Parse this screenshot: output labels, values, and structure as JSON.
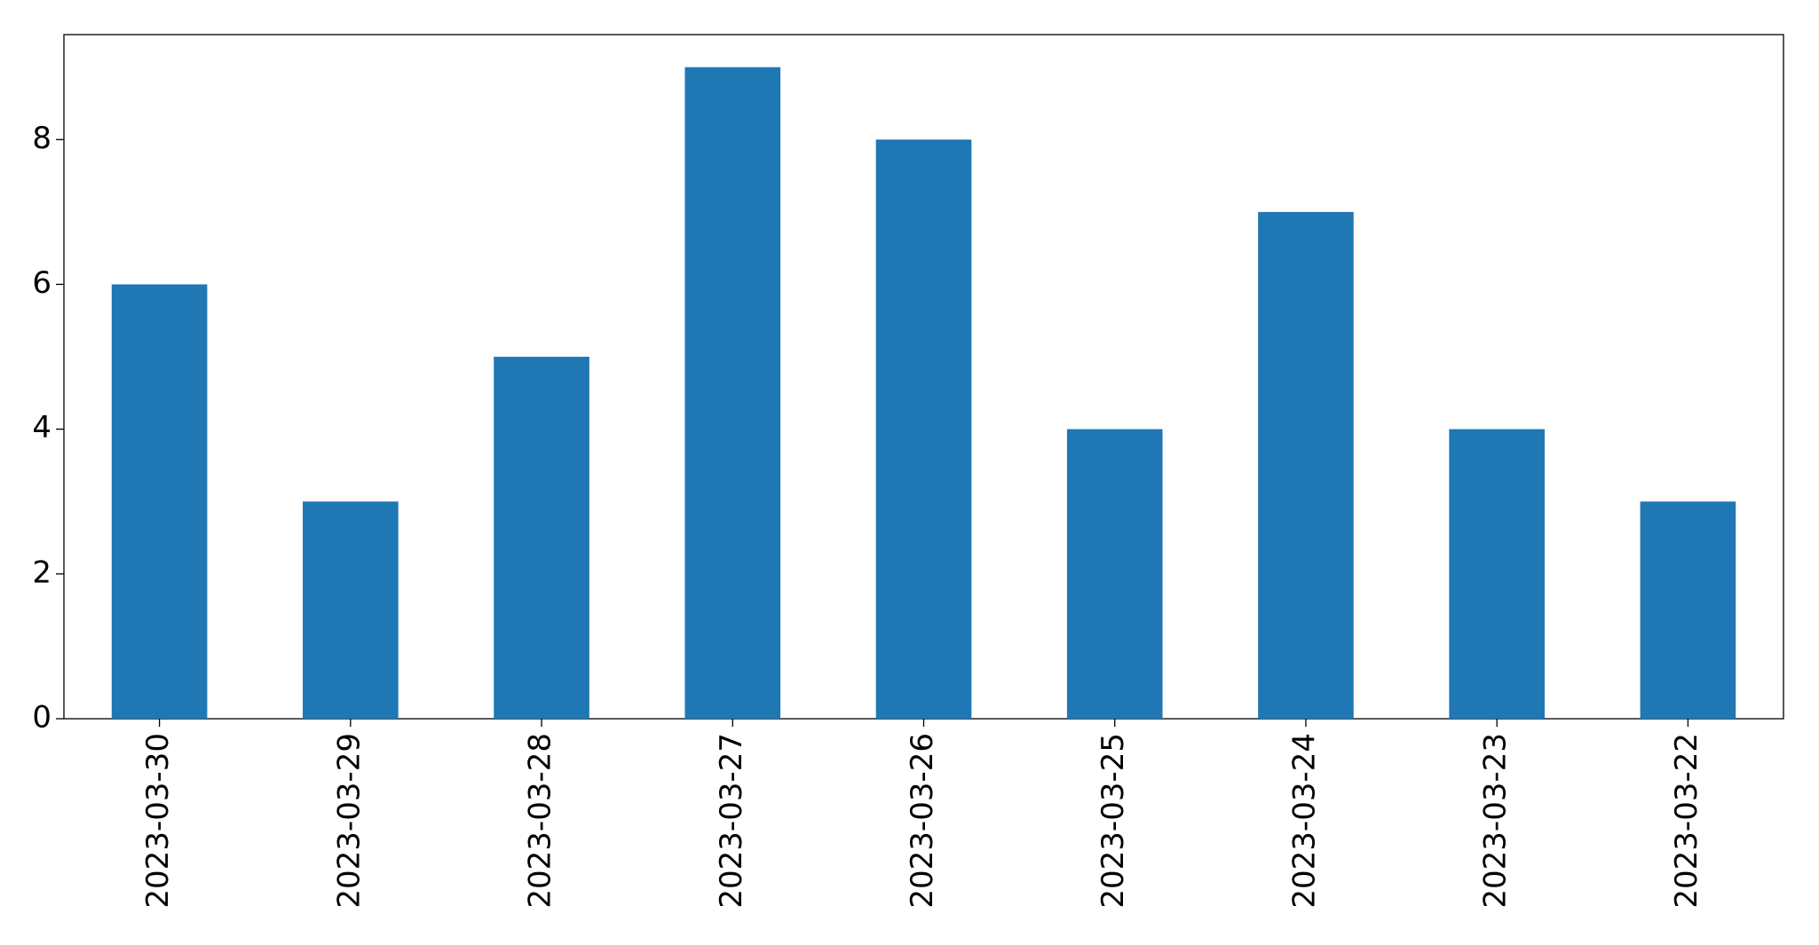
{
  "chart_data": {
    "type": "bar",
    "categories": [
      "2023-03-30",
      "2023-03-29",
      "2023-03-28",
      "2023-03-27",
      "2023-03-26",
      "2023-03-25",
      "2023-03-24",
      "2023-03-23",
      "2023-03-22"
    ],
    "values": [
      6,
      3,
      5,
      9,
      8,
      4,
      7,
      4,
      3
    ],
    "color": "#1f77b4",
    "ylim": [
      0,
      9.45
    ],
    "yticks": [
      0,
      2,
      4,
      6,
      8
    ],
    "grid": false
  }
}
